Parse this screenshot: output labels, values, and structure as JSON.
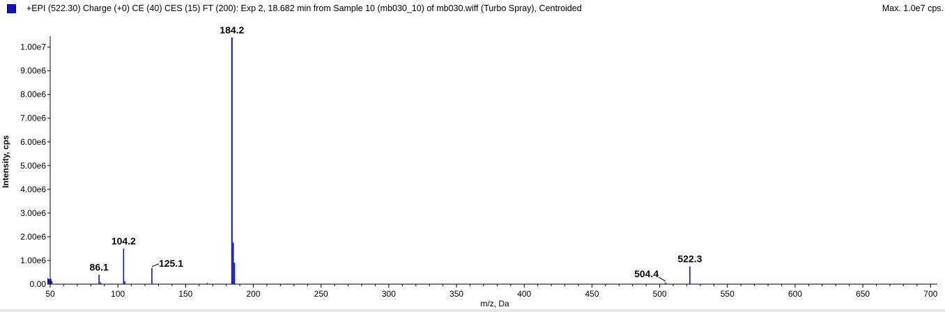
{
  "header": {
    "title": "+EPI (522.30) Charge (+0) CE (40) CES (15) FT (200): Exp 2, 18.682 min from Sample 10 (mb030_10) of mb030.wiff (Turbo Spray), Centroided",
    "max_label": "Max. 1.0e7 cps.",
    "series_color": "#1010c8"
  },
  "chart_data": {
    "type": "bar",
    "xlabel": "m/z, Da",
    "ylabel": "Intensity, cps",
    "xlim": [
      50,
      705
    ],
    "ylim": [
      0,
      10400000
    ],
    "x_ticks": [
      50,
      100,
      150,
      200,
      250,
      300,
      350,
      400,
      450,
      500,
      550,
      600,
      650,
      700
    ],
    "y_ticks": [
      {
        "value": 0,
        "label": "0.00"
      },
      {
        "value": 1000000,
        "label": "1.00e6"
      },
      {
        "value": 2000000,
        "label": "2.00e6"
      },
      {
        "value": 3000000,
        "label": "3.00e6"
      },
      {
        "value": 4000000,
        "label": "4.00e6"
      },
      {
        "value": 5000000,
        "label": "5.00e6"
      },
      {
        "value": 6000000,
        "label": "6.00e6"
      },
      {
        "value": 7000000,
        "label": "7.00e6"
      },
      {
        "value": 8000000,
        "label": "8.00e6"
      },
      {
        "value": 9000000,
        "label": "9.00e6"
      },
      {
        "value": 10000000,
        "label": "1.00e7"
      }
    ],
    "peaks": [
      {
        "mz": 50.5,
        "intensity": 230000
      },
      {
        "mz": 51.2,
        "intensity": 120000
      },
      {
        "mz": 86.1,
        "intensity": 400000
      },
      {
        "mz": 87.2,
        "intensity": 80000
      },
      {
        "mz": 104.2,
        "intensity": 1500000
      },
      {
        "mz": 105.1,
        "intensity": 120000
      },
      {
        "mz": 125.1,
        "intensity": 680000
      },
      {
        "mz": 166.0,
        "intensity": 50000
      },
      {
        "mz": 184.2,
        "intensity": 10400000
      },
      {
        "mz": 185.2,
        "intensity": 1750000
      },
      {
        "mz": 186.1,
        "intensity": 900000
      },
      {
        "mz": 504.4,
        "intensity": 60000
      },
      {
        "mz": 522.3,
        "intensity": 750000
      }
    ],
    "peak_labels": [
      {
        "text": "86.1",
        "mz": 86.1,
        "intensity": 400000
      },
      {
        "text": "104.2",
        "mz": 104.2,
        "intensity": 1500000
      },
      {
        "text": "125.1",
        "mz": 125.1,
        "intensity": 680000
      },
      {
        "text": "184.2",
        "mz": 184.2,
        "intensity": 10400000
      },
      {
        "text": "504.4",
        "mz": 504.4,
        "intensity": 60000
      },
      {
        "text": "522.3",
        "mz": 522.3,
        "intensity": 750000
      }
    ]
  }
}
